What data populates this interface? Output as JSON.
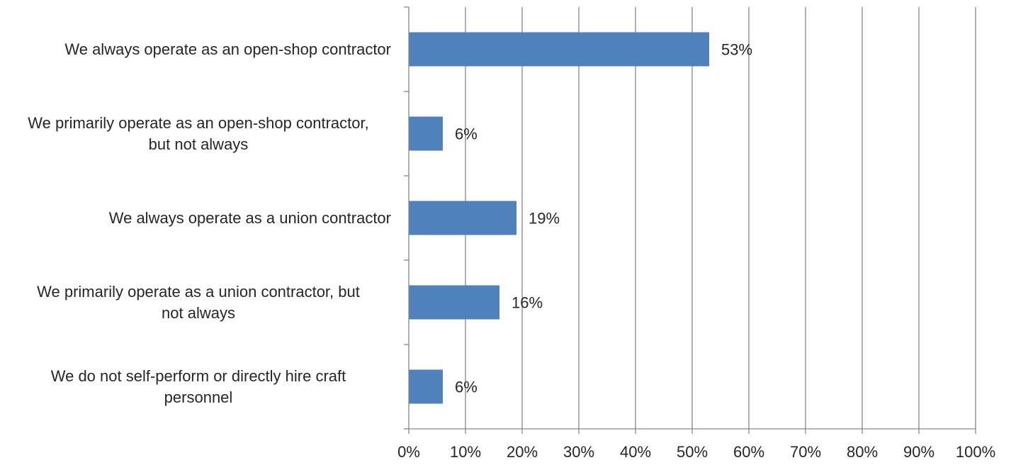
{
  "chart_data": {
    "type": "bar",
    "orientation": "horizontal",
    "categories": [
      "We always operate as an open-shop contractor",
      "We primarily operate as an open-shop contractor,\nbut not always",
      "We always operate as a union contractor",
      "We primarily operate as a union contractor, but\nnot always",
      "We do not self-perform or directly hire craft\npersonnel"
    ],
    "values": [
      53,
      6,
      19,
      16,
      6
    ],
    "data_labels": [
      "53%",
      "6%",
      "19%",
      "16%",
      "6%"
    ],
    "xlim": [
      0,
      100
    ],
    "x_ticks": [
      0,
      10,
      20,
      30,
      40,
      50,
      60,
      70,
      80,
      90,
      100
    ],
    "x_tick_labels": [
      "0%",
      "10%",
      "20%",
      "30%",
      "40%",
      "50%",
      "60%",
      "70%",
      "80%",
      "90%",
      "100%"
    ],
    "grid": "vertical",
    "legend": "none",
    "title": "",
    "xlabel": "",
    "ylabel": "",
    "bar_color": "#4F81BD",
    "grid_color": "#868686"
  }
}
